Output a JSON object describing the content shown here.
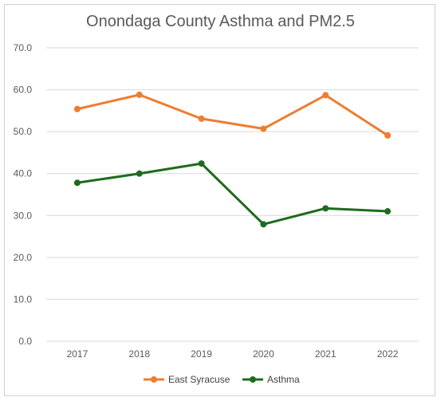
{
  "chart_data": {
    "type": "line",
    "title": "Onondaga County Asthma and PM2.5",
    "xlabel": "",
    "ylabel": "",
    "categories": [
      "2017",
      "2018",
      "2019",
      "2020",
      "2021",
      "2022"
    ],
    "y_tick_labels": [
      "0.0",
      "10.0",
      "20.0",
      "30.0",
      "40.0",
      "50.0",
      "60.0",
      "70.0"
    ],
    "ylim": [
      0,
      70
    ],
    "grid": true,
    "legend_position": "bottom",
    "series": [
      {
        "name": "East Syracuse",
        "color": "#ED7D31",
        "values": [
          55.4,
          58.8,
          53.1,
          50.7,
          58.7,
          49.1
        ]
      },
      {
        "name": "Asthma",
        "color": "#1E6B1E",
        "values": [
          37.8,
          40.0,
          42.4,
          27.9,
          31.7,
          31.0
        ]
      }
    ]
  }
}
